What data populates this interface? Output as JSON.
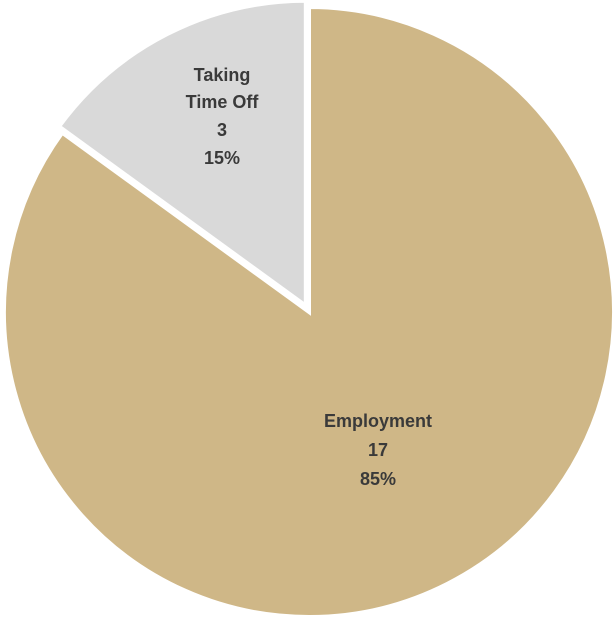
{
  "chart_data": {
    "type": "pie",
    "slices": [
      {
        "name": "Employment",
        "value": 17,
        "percent": "85%",
        "color": "#CFB787"
      },
      {
        "name": "Taking Time Off",
        "value": 3,
        "percent": "15%",
        "color": "#D9D9D9"
      }
    ],
    "labels": {
      "employment": {
        "line1": "Employment",
        "count": "17",
        "percent": "85%"
      },
      "time_off": {
        "line1": "Taking",
        "line2": "Time Off",
        "count": "3",
        "percent": "15%"
      }
    }
  }
}
